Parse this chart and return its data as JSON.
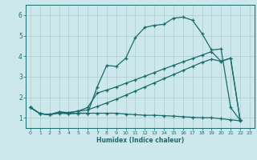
{
  "xlabel": "Humidex (Indice chaleur)",
  "bg_color": "#cce8ec",
  "grid_color": "#aacccc",
  "line_color": "#1a6b6b",
  "xlim": [
    -0.5,
    23.5
  ],
  "ylim": [
    0.5,
    6.5
  ],
  "xticks": [
    0,
    1,
    2,
    3,
    4,
    5,
    6,
    7,
    8,
    9,
    10,
    11,
    12,
    13,
    14,
    15,
    16,
    17,
    18,
    19,
    20,
    21,
    22,
    23
  ],
  "yticks": [
    1,
    2,
    3,
    4,
    5,
    6
  ],
  "line_peak_x": [
    0,
    1,
    2,
    3,
    4,
    5,
    6,
    7,
    8,
    9,
    10,
    11,
    12,
    13,
    14,
    15,
    16,
    17,
    18,
    19,
    20,
    21,
    22
  ],
  "line_peak_y": [
    1.5,
    1.2,
    1.15,
    1.25,
    1.2,
    1.22,
    1.22,
    2.5,
    3.55,
    3.5,
    3.9,
    4.9,
    5.4,
    5.5,
    5.55,
    5.85,
    5.9,
    5.75,
    5.1,
    4.3,
    4.35,
    1.5,
    0.88
  ],
  "line_diag_x": [
    0,
    1,
    2,
    3,
    4,
    5,
    6,
    7,
    8,
    9,
    10,
    11,
    12,
    13,
    14,
    15,
    16,
    17,
    18,
    19,
    20,
    21,
    22
  ],
  "line_diag_y": [
    1.5,
    1.2,
    1.15,
    1.28,
    1.25,
    1.32,
    1.38,
    1.55,
    1.72,
    1.9,
    2.1,
    2.3,
    2.5,
    2.7,
    2.9,
    3.1,
    3.3,
    3.5,
    3.7,
    3.85,
    3.75,
    3.9,
    0.88
  ],
  "line_diag2_x": [
    0,
    1,
    2,
    3,
    4,
    5,
    6,
    7,
    8,
    9,
    10,
    11,
    12,
    13,
    14,
    15,
    16,
    17,
    18,
    19,
    20,
    21,
    22
  ],
  "line_diag2_y": [
    1.5,
    1.2,
    1.15,
    1.28,
    1.25,
    1.32,
    1.5,
    2.2,
    2.35,
    2.5,
    2.68,
    2.85,
    3.02,
    3.2,
    3.38,
    3.55,
    3.72,
    3.88,
    4.05,
    4.22,
    3.75,
    3.9,
    0.88
  ],
  "line_flat_x": [
    0,
    1,
    2,
    3,
    4,
    5,
    6,
    7,
    8,
    9,
    10,
    11,
    12,
    13,
    14,
    15,
    16,
    17,
    18,
    19,
    20,
    21,
    22
  ],
  "line_flat_y": [
    1.5,
    1.2,
    1.15,
    1.22,
    1.2,
    1.22,
    1.22,
    1.22,
    1.22,
    1.22,
    1.18,
    1.15,
    1.12,
    1.12,
    1.1,
    1.08,
    1.05,
    1.02,
    1.0,
    1.0,
    0.95,
    0.9,
    0.85
  ]
}
